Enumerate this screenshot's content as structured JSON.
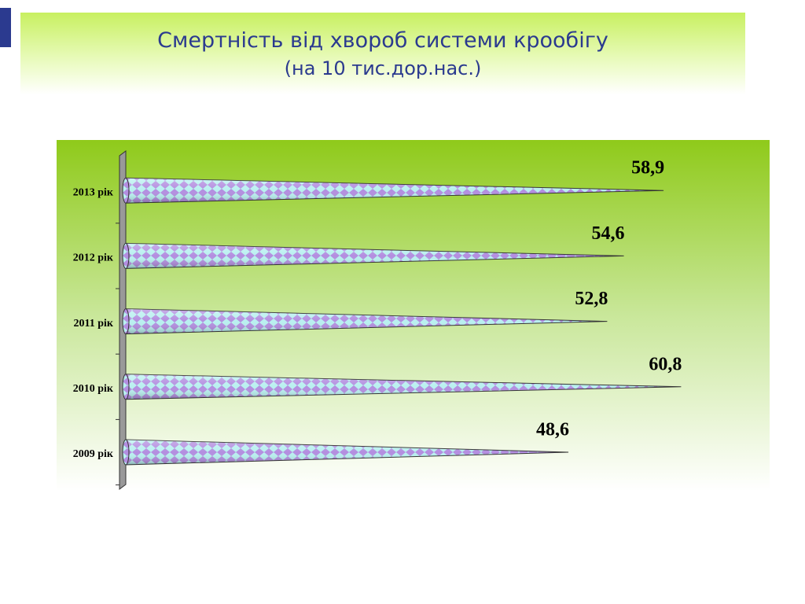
{
  "chart_data": {
    "type": "bar",
    "orientation": "horizontal",
    "title": "Смертність від хвороб системи крообігу",
    "subtitle": "(на 10 тис.дор.нас.)",
    "categories": [
      "2009 рік",
      "2010 рік",
      "2011 рік",
      "2012 рік",
      "2013 рік"
    ],
    "values": [
      48.6,
      60.8,
      52.8,
      54.6,
      58.9
    ],
    "value_labels": [
      "48,6",
      "60,8",
      "52,8",
      "54,6",
      "58,9"
    ],
    "color": "#b38ee0"
  }
}
